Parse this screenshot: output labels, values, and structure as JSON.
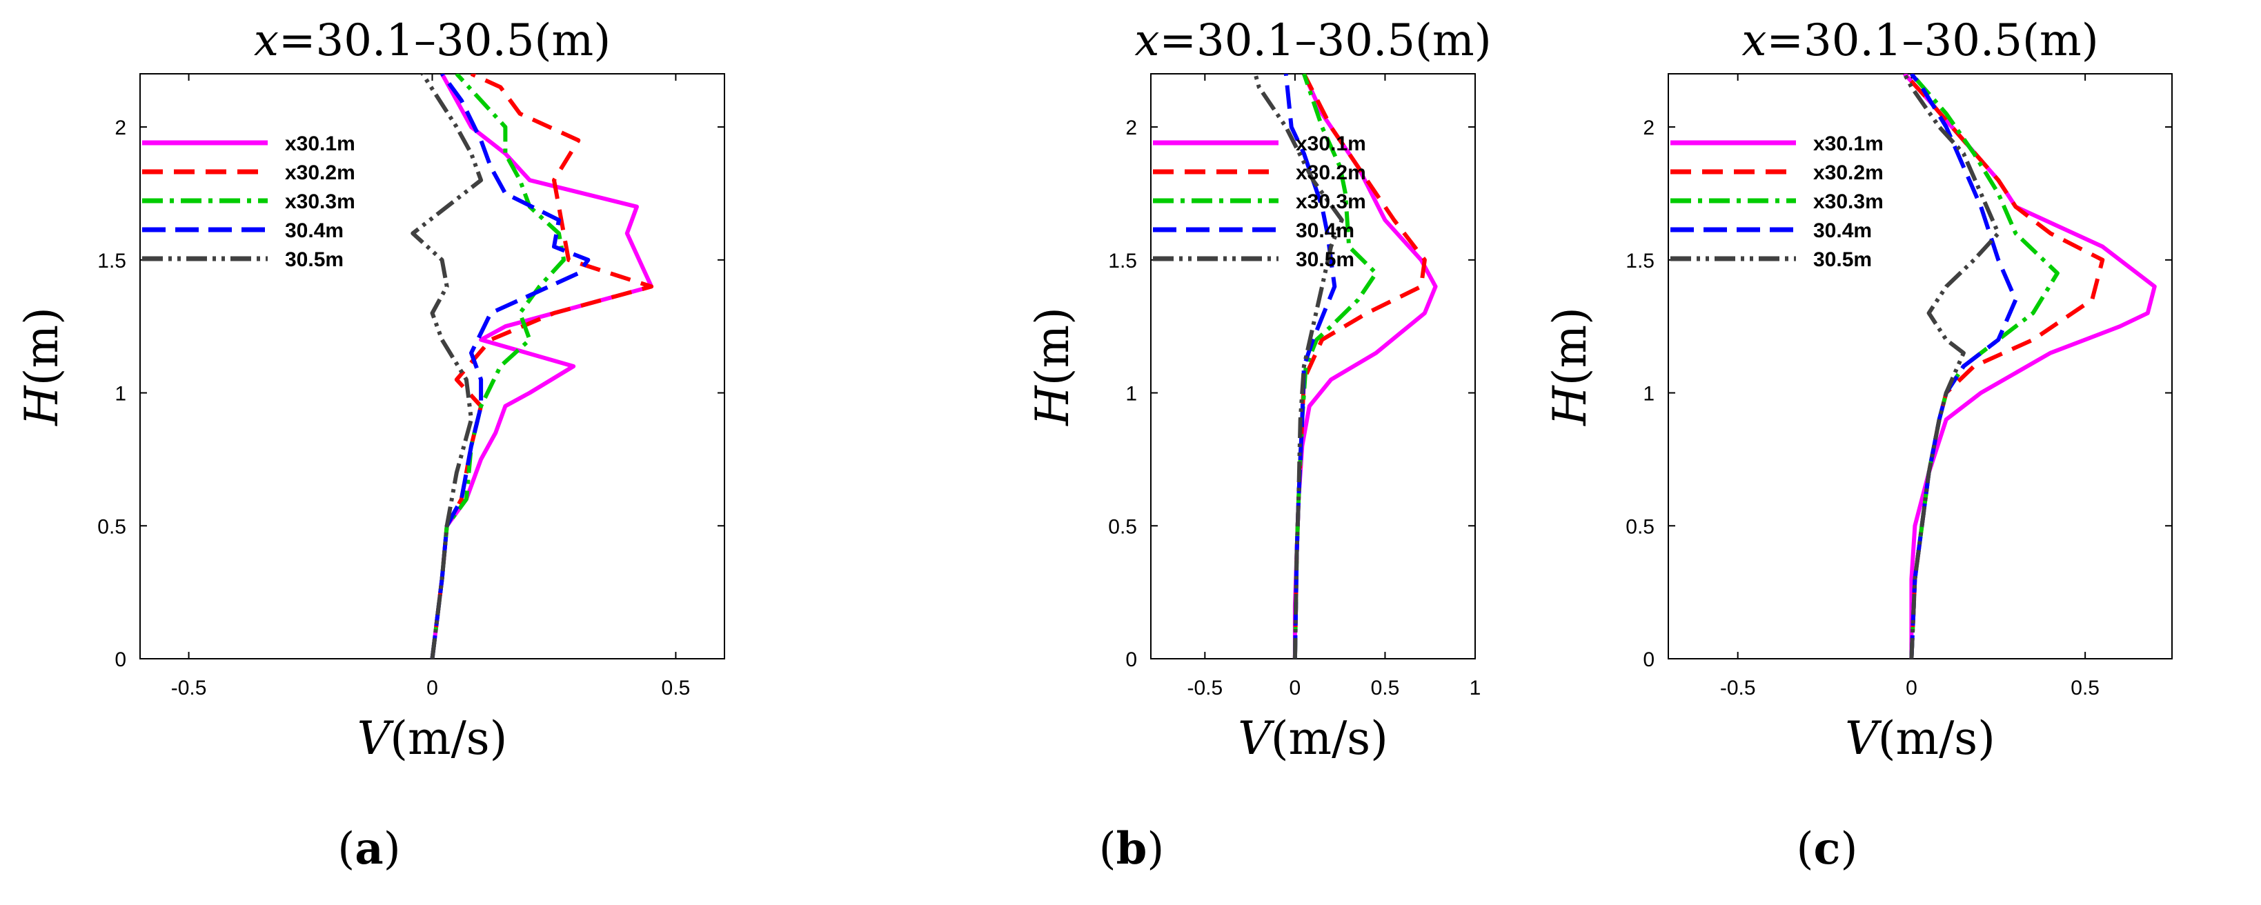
{
  "chart_data": [
    {
      "type": "line",
      "panel_label": "(a)",
      "panel_letter": "a",
      "title_var": "x",
      "title_rest": "=30.1–30.5(m)",
      "xlabel_var": "V",
      "xlabel_rest": "(m/s)",
      "ylabel_var": "H",
      "ylabel_rest": "(m)",
      "xlim": [
        -0.6,
        0.6
      ],
      "ylim": [
        0,
        2.2
      ],
      "xticks": [
        -0.5,
        0,
        0.5
      ],
      "xtick_labels": [
        "-0.5",
        "0",
        "0.5"
      ],
      "yticks": [
        0,
        0.5,
        1,
        1.5,
        2
      ],
      "ytick_labels": [
        "0",
        "0.5",
        "1",
        "1.5",
        "2"
      ],
      "legend_position": "top-left",
      "series": [
        {
          "name": "x30.1m",
          "color": "#ff00ff",
          "dash": "solid",
          "points": [
            [
              0.0,
              0.0
            ],
            [
              0.02,
              0.3
            ],
            [
              0.03,
              0.5
            ],
            [
              0.07,
              0.6
            ],
            [
              0.1,
              0.75
            ],
            [
              0.13,
              0.85
            ],
            [
              0.15,
              0.95
            ],
            [
              0.2,
              1.0
            ],
            [
              0.29,
              1.1
            ],
            [
              0.1,
              1.2
            ],
            [
              0.15,
              1.25
            ],
            [
              0.45,
              1.4
            ],
            [
              0.4,
              1.6
            ],
            [
              0.42,
              1.7
            ],
            [
              0.2,
              1.8
            ],
            [
              0.15,
              1.9
            ],
            [
              0.08,
              2.0
            ],
            [
              0.02,
              2.2
            ]
          ]
        },
        {
          "name": "x30.2m",
          "color": "#ff0000",
          "dash": "30,16",
          "points": [
            [
              0.0,
              0.0
            ],
            [
              0.02,
              0.3
            ],
            [
              0.03,
              0.5
            ],
            [
              0.06,
              0.6
            ],
            [
              0.08,
              0.8
            ],
            [
              0.1,
              0.95
            ],
            [
              0.05,
              1.05
            ],
            [
              0.12,
              1.2
            ],
            [
              0.25,
              1.3
            ],
            [
              0.45,
              1.4
            ],
            [
              0.28,
              1.5
            ],
            [
              0.26,
              1.7
            ],
            [
              0.25,
              1.8
            ],
            [
              0.3,
              1.95
            ],
            [
              0.18,
              2.05
            ],
            [
              0.14,
              2.15
            ],
            [
              0.08,
              2.2
            ]
          ]
        },
        {
          "name": "x30.3m",
          "color": "#00cc00",
          "dash": "30,10,6,10",
          "points": [
            [
              0.0,
              0.0
            ],
            [
              0.02,
              0.3
            ],
            [
              0.03,
              0.5
            ],
            [
              0.07,
              0.6
            ],
            [
              0.08,
              0.8
            ],
            [
              0.1,
              0.95
            ],
            [
              0.14,
              1.1
            ],
            [
              0.2,
              1.2
            ],
            [
              0.18,
              1.3
            ],
            [
              0.22,
              1.4
            ],
            [
              0.27,
              1.5
            ],
            [
              0.26,
              1.6
            ],
            [
              0.2,
              1.7
            ],
            [
              0.18,
              1.8
            ],
            [
              0.15,
              1.9
            ],
            [
              0.15,
              2.0
            ],
            [
              0.1,
              2.1
            ],
            [
              0.05,
              2.2
            ]
          ]
        },
        {
          "name": "30.4m",
          "color": "#0000ff",
          "dash": "34,14",
          "points": [
            [
              0.0,
              0.0
            ],
            [
              0.02,
              0.3
            ],
            [
              0.03,
              0.5
            ],
            [
              0.06,
              0.6
            ],
            [
              0.08,
              0.8
            ],
            [
              0.1,
              0.95
            ],
            [
              0.1,
              1.05
            ],
            [
              0.08,
              1.15
            ],
            [
              0.12,
              1.3
            ],
            [
              0.3,
              1.45
            ],
            [
              0.32,
              1.5
            ],
            [
              0.25,
              1.55
            ],
            [
              0.26,
              1.65
            ],
            [
              0.15,
              1.75
            ],
            [
              0.12,
              1.85
            ],
            [
              0.1,
              1.95
            ],
            [
              0.06,
              2.1
            ],
            [
              0.02,
              2.2
            ]
          ]
        },
        {
          "name": "30.5m",
          "color": "#404040",
          "dash": "30,8,5,8,5,8",
          "points": [
            [
              0.0,
              0.0
            ],
            [
              0.02,
              0.3
            ],
            [
              0.03,
              0.5
            ],
            [
              0.05,
              0.7
            ],
            [
              0.08,
              0.9
            ],
            [
              0.07,
              1.05
            ],
            [
              0.02,
              1.2
            ],
            [
              0.0,
              1.3
            ],
            [
              0.03,
              1.4
            ],
            [
              0.02,
              1.5
            ],
            [
              -0.04,
              1.6
            ],
            [
              0.1,
              1.8
            ],
            [
              0.08,
              1.9
            ],
            [
              0.05,
              2.0
            ],
            [
              -0.02,
              2.2
            ]
          ]
        }
      ]
    },
    {
      "type": "line",
      "panel_label": "(b)",
      "panel_letter": "b",
      "title_var": "x",
      "title_rest": "=30.1–30.5(m)",
      "xlabel_var": "V",
      "xlabel_rest": "(m/s)",
      "ylabel_var": "H",
      "ylabel_rest": "(m)",
      "xlim": [
        -0.8,
        1.0
      ],
      "ylim": [
        0,
        2.2
      ],
      "xticks": [
        -0.5,
        0,
        0.5,
        1
      ],
      "xtick_labels": [
        "-0.5",
        "0",
        "0.5",
        "1"
      ],
      "yticks": [
        0,
        0.5,
        1,
        1.5,
        2
      ],
      "ytick_labels": [
        "0",
        "0.5",
        "1",
        "1.5",
        "2"
      ],
      "legend_position": "top-left",
      "series": [
        {
          "name": "x30.1m",
          "color": "#ff00ff",
          "dash": "solid",
          "points": [
            [
              0.0,
              0.0
            ],
            [
              0.0,
              0.2
            ],
            [
              0.01,
              0.4
            ],
            [
              0.02,
              0.6
            ],
            [
              0.04,
              0.8
            ],
            [
              0.08,
              0.95
            ],
            [
              0.2,
              1.05
            ],
            [
              0.45,
              1.15
            ],
            [
              0.72,
              1.3
            ],
            [
              0.78,
              1.4
            ],
            [
              0.7,
              1.5
            ],
            [
              0.5,
              1.65
            ],
            [
              0.35,
              1.85
            ],
            [
              0.15,
              2.05
            ],
            [
              0.05,
              2.2
            ]
          ]
        },
        {
          "name": "x30.2m",
          "color": "#ff0000",
          "dash": "30,16",
          "points": [
            [
              0.0,
              0.0
            ],
            [
              0.01,
              0.4
            ],
            [
              0.02,
              0.6
            ],
            [
              0.04,
              0.9
            ],
            [
              0.05,
              1.05
            ],
            [
              0.15,
              1.2
            ],
            [
              0.4,
              1.3
            ],
            [
              0.7,
              1.4
            ],
            [
              0.72,
              1.5
            ],
            [
              0.55,
              1.65
            ],
            [
              0.4,
              1.8
            ],
            [
              0.2,
              2.0
            ],
            [
              0.05,
              2.2
            ]
          ]
        },
        {
          "name": "x30.3m",
          "color": "#00cc00",
          "dash": "30,10,6,10",
          "points": [
            [
              0.0,
              0.0
            ],
            [
              0.01,
              0.4
            ],
            [
              0.02,
              0.6
            ],
            [
              0.04,
              0.9
            ],
            [
              0.06,
              1.1
            ],
            [
              0.12,
              1.2
            ],
            [
              0.2,
              1.25
            ],
            [
              0.35,
              1.35
            ],
            [
              0.45,
              1.45
            ],
            [
              0.3,
              1.55
            ],
            [
              0.28,
              1.75
            ],
            [
              0.25,
              1.85
            ],
            [
              0.15,
              2.0
            ],
            [
              0.05,
              2.2
            ]
          ]
        },
        {
          "name": "30.4m",
          "color": "#0000ff",
          "dash": "34,14",
          "points": [
            [
              0.0,
              0.0
            ],
            [
              0.01,
              0.4
            ],
            [
              0.02,
              0.6
            ],
            [
              0.04,
              0.9
            ],
            [
              0.05,
              1.1
            ],
            [
              0.1,
              1.2
            ],
            [
              0.22,
              1.4
            ],
            [
              0.18,
              1.6
            ],
            [
              0.15,
              1.7
            ],
            [
              0.05,
              1.9
            ],
            [
              -0.02,
              2.0
            ],
            [
              -0.05,
              2.2
            ]
          ]
        },
        {
          "name": "30.5m",
          "color": "#404040",
          "dash": "30,8,5,8,5,8",
          "points": [
            [
              0.0,
              0.0
            ],
            [
              0.01,
              0.4
            ],
            [
              0.02,
              0.6
            ],
            [
              0.03,
              0.9
            ],
            [
              0.05,
              1.1
            ],
            [
              0.1,
              1.25
            ],
            [
              0.15,
              1.4
            ],
            [
              0.2,
              1.55
            ],
            [
              0.26,
              1.65
            ],
            [
              0.1,
              1.8
            ],
            [
              -0.05,
              2.0
            ],
            [
              -0.2,
              2.15
            ],
            [
              -0.22,
              2.2
            ]
          ]
        }
      ]
    },
    {
      "type": "line",
      "panel_label": "(c)",
      "panel_letter": "c",
      "title_var": "x",
      "title_rest": "=30.1–30.5(m)",
      "xlabel_var": "V",
      "xlabel_rest": "(m/s)",
      "ylabel_var": "H",
      "ylabel_rest": "(m)",
      "xlim": [
        -0.7,
        0.75
      ],
      "ylim": [
        0,
        2.2
      ],
      "xticks": [
        -0.5,
        0,
        0.5
      ],
      "xtick_labels": [
        "-0.5",
        "0",
        "0.5"
      ],
      "yticks": [
        0,
        0.5,
        1,
        1.5,
        2
      ],
      "ytick_labels": [
        "0",
        "0.5",
        "1",
        "1.5",
        "2"
      ],
      "legend_position": "top-left",
      "series": [
        {
          "name": "x30.1m",
          "color": "#ff00ff",
          "dash": "solid",
          "points": [
            [
              0.0,
              0.0
            ],
            [
              0.0,
              0.3
            ],
            [
              0.01,
              0.5
            ],
            [
              0.05,
              0.7
            ],
            [
              0.1,
              0.9
            ],
            [
              0.2,
              1.0
            ],
            [
              0.4,
              1.15
            ],
            [
              0.6,
              1.25
            ],
            [
              0.68,
              1.3
            ],
            [
              0.7,
              1.4
            ],
            [
              0.55,
              1.55
            ],
            [
              0.3,
              1.7
            ],
            [
              0.25,
              1.8
            ],
            [
              0.15,
              1.95
            ],
            [
              0.05,
              2.1
            ],
            [
              -0.02,
              2.2
            ]
          ]
        },
        {
          "name": "x30.2m",
          "color": "#ff0000",
          "dash": "30,16",
          "points": [
            [
              0.0,
              0.0
            ],
            [
              0.01,
              0.3
            ],
            [
              0.03,
              0.5
            ],
            [
              0.05,
              0.7
            ],
            [
              0.08,
              0.9
            ],
            [
              0.1,
              1.0
            ],
            [
              0.18,
              1.1
            ],
            [
              0.35,
              1.2
            ],
            [
              0.52,
              1.35
            ],
            [
              0.55,
              1.5
            ],
            [
              0.4,
              1.6
            ],
            [
              0.3,
              1.7
            ],
            [
              0.25,
              1.8
            ],
            [
              0.15,
              1.95
            ],
            [
              0.05,
              2.1
            ],
            [
              -0.02,
              2.2
            ]
          ]
        },
        {
          "name": "x30.3m",
          "color": "#00cc00",
          "dash": "30,10,6,10",
          "points": [
            [
              0.0,
              0.0
            ],
            [
              0.01,
              0.3
            ],
            [
              0.03,
              0.5
            ],
            [
              0.05,
              0.7
            ],
            [
              0.08,
              0.9
            ],
            [
              0.1,
              1.0
            ],
            [
              0.15,
              1.1
            ],
            [
              0.25,
              1.2
            ],
            [
              0.35,
              1.3
            ],
            [
              0.42,
              1.45
            ],
            [
              0.3,
              1.6
            ],
            [
              0.25,
              1.75
            ],
            [
              0.18,
              1.9
            ],
            [
              0.1,
              2.05
            ],
            [
              0.0,
              2.2
            ]
          ]
        },
        {
          "name": "30.4m",
          "color": "#0000ff",
          "dash": "34,14",
          "points": [
            [
              0.0,
              0.0
            ],
            [
              0.01,
              0.3
            ],
            [
              0.03,
              0.5
            ],
            [
              0.05,
              0.7
            ],
            [
              0.08,
              0.9
            ],
            [
              0.1,
              1.0
            ],
            [
              0.15,
              1.1
            ],
            [
              0.25,
              1.2
            ],
            [
              0.3,
              1.35
            ],
            [
              0.25,
              1.5
            ],
            [
              0.2,
              1.7
            ],
            [
              0.15,
              1.85
            ],
            [
              0.1,
              2.0
            ],
            [
              0.03,
              2.15
            ],
            [
              0.0,
              2.2
            ]
          ]
        },
        {
          "name": "30.5m",
          "color": "#404040",
          "dash": "30,8,5,8,5,8",
          "points": [
            [
              0.0,
              0.0
            ],
            [
              0.01,
              0.3
            ],
            [
              0.03,
              0.5
            ],
            [
              0.05,
              0.7
            ],
            [
              0.08,
              0.9
            ],
            [
              0.1,
              1.0
            ],
            [
              0.15,
              1.15
            ],
            [
              0.1,
              1.2
            ],
            [
              0.05,
              1.3
            ],
            [
              0.1,
              1.4
            ],
            [
              0.18,
              1.5
            ],
            [
              0.25,
              1.6
            ],
            [
              0.2,
              1.75
            ],
            [
              0.15,
              1.9
            ],
            [
              0.08,
              2.0
            ],
            [
              0.0,
              2.15
            ],
            [
              -0.02,
              2.2
            ]
          ]
        }
      ]
    }
  ]
}
